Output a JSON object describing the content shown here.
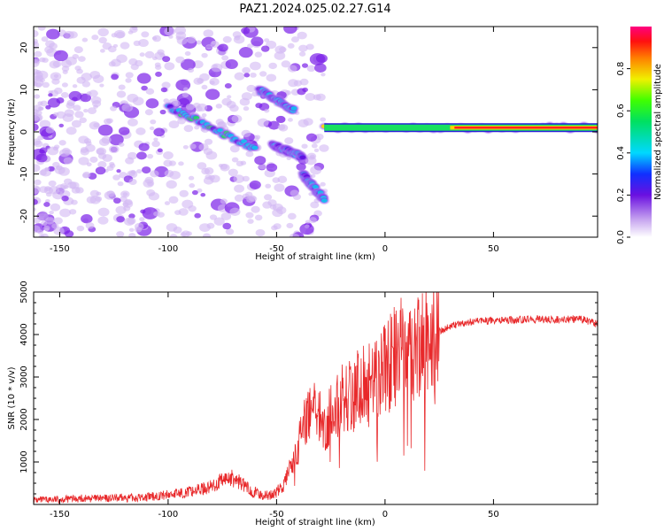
{
  "title": "PAZ1.2024.025.02.27.G14",
  "colors": {
    "snr_line": "#e8282a",
    "frame": "#000000",
    "colormap_note": "white-to-purple-blue-cyan-green-yellow-red-magenta"
  },
  "chart_data": [
    {
      "type": "heatmap",
      "title": "PAZ1.2024.025.02.27.G14",
      "xlabel": "Height of straight line (km)",
      "ylabel": "Frequency (Hz)",
      "xlim": [
        -162,
        98
      ],
      "ylim": [
        -25,
        25
      ],
      "x_ticks": [
        -150,
        -100,
        -50,
        0,
        50
      ],
      "y_ticks": [
        -20,
        -10,
        0,
        10,
        20
      ],
      "colorbar": {
        "label": "Normalized spectral amplitude",
        "range": [
          0,
          1
        ],
        "ticks": [
          0.0,
          0.2,
          0.4,
          0.6,
          0.8
        ]
      },
      "features": [
        {
          "x": [
            -28,
            98
          ],
          "y": [
            1,
            1
          ],
          "amplitude": 0.9
        },
        {
          "x": [
            -100,
            -60
          ],
          "y": [
            6,
            -4
          ],
          "amplitude": 0.4
        },
        {
          "x": [
            -58,
            -42
          ],
          "y": [
            10,
            5
          ],
          "amplitude": 0.35
        },
        {
          "x": [
            -52,
            -38
          ],
          "y": [
            -3,
            -6
          ],
          "amplitude": 0.35
        },
        {
          "x": [
            -38,
            -28
          ],
          "y": [
            -10,
            -16
          ],
          "amplitude": 0.35
        }
      ]
    },
    {
      "type": "line",
      "xlabel": "Height of straight line (km)",
      "ylabel": "SNR (10 * v/v)",
      "xlim": [
        -162,
        98
      ],
      "ylim": [
        0,
        5000
      ],
      "x_ticks": [
        -150,
        -100,
        -50,
        0,
        50
      ],
      "y_ticks": [
        1000,
        2000,
        3000,
        4000,
        5000
      ],
      "series": [
        {
          "x": [
            -162,
            -150,
            -140,
            -130,
            -120,
            -110,
            -100,
            -90,
            -80,
            -72,
            -67,
            -62,
            -57,
            -52,
            -47,
            -43,
            -40,
            -37,
            -34,
            -31,
            -28,
            -25,
            -22,
            -19,
            -16,
            -13,
            -10,
            -7,
            -4,
            -1,
            2,
            5,
            8,
            10,
            12,
            14,
            17,
            20,
            23,
            26,
            30,
            35,
            40,
            50,
            60,
            70,
            80,
            90,
            98
          ],
          "values": [
            100,
            120,
            140,
            140,
            150,
            170,
            230,
            300,
            420,
            640,
            530,
            330,
            220,
            220,
            420,
            930,
            1400,
            1900,
            2300,
            2200,
            1900,
            2100,
            2400,
            2600,
            2500,
            2700,
            2900,
            3000,
            3100,
            3200,
            3300,
            3500,
            3700,
            3600,
            3700,
            3600,
            3800,
            3900,
            4000,
            4100,
            4200,
            4250,
            4300,
            4330,
            4350,
            4360,
            4350,
            4370,
            4250
          ]
        }
      ]
    }
  ]
}
